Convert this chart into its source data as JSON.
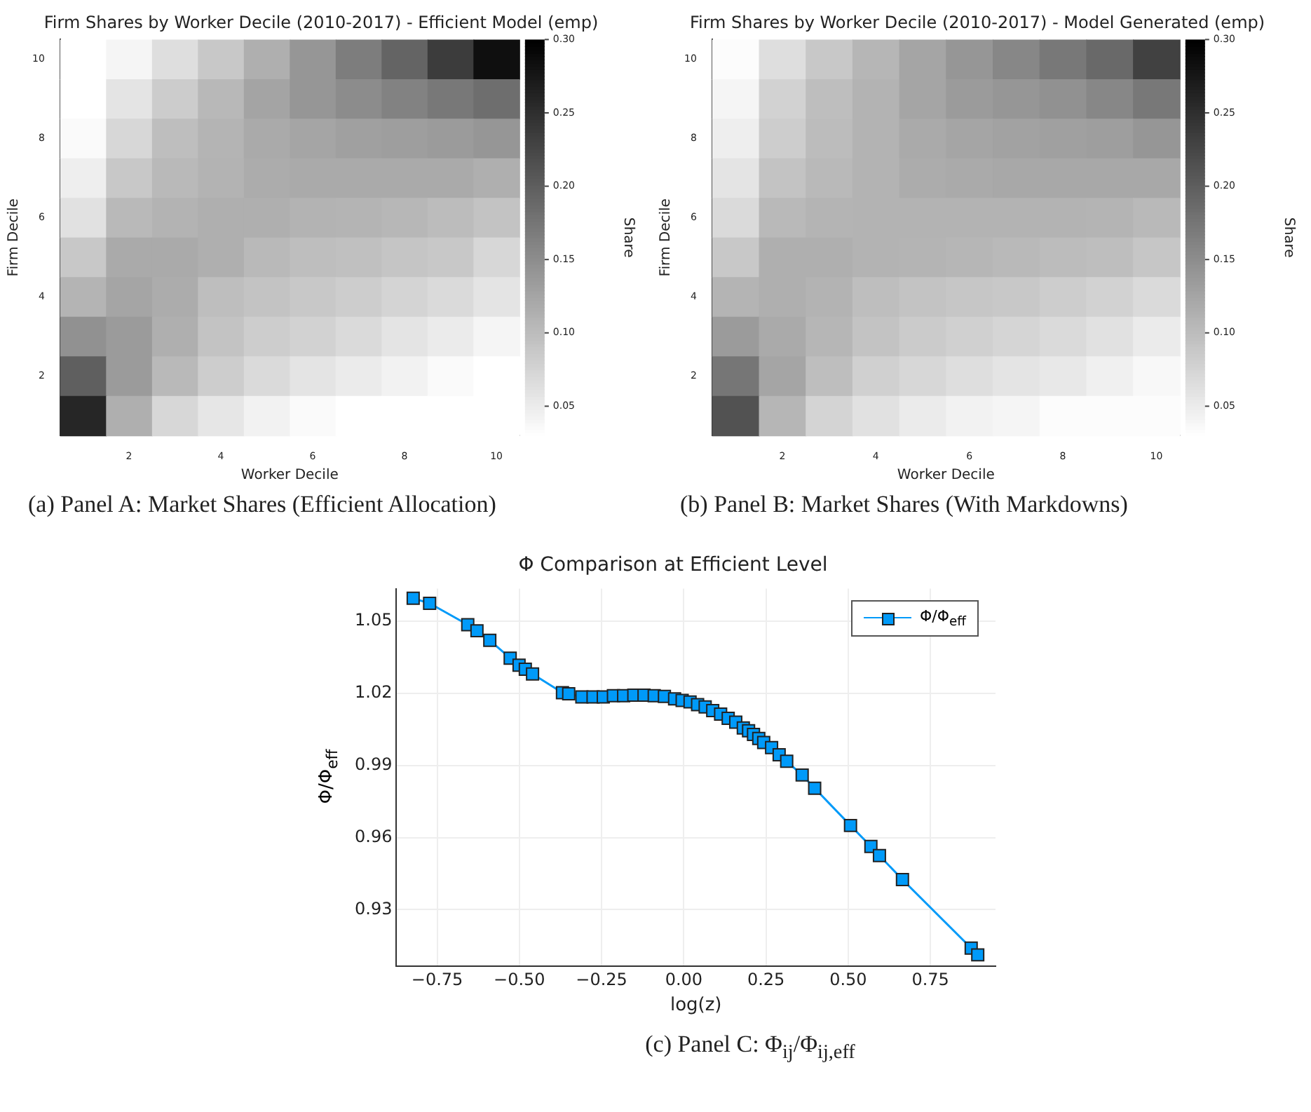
{
  "chart_data": [
    {
      "type": "heatmap",
      "title": "Firm Shares by Worker Decile (2010-2017) - Efficient Model (emp)",
      "xlabel": "Worker Decile",
      "ylabel": "Firm Decile",
      "clabel": "Share",
      "categories": [
        null,
        "2",
        null,
        "4",
        null,
        "6",
        null,
        "8",
        null,
        "10"
      ],
      "y_categories": [
        "10",
        null,
        "8",
        null,
        "6",
        null,
        "4",
        null,
        "2",
        null
      ],
      "cells": [
        [
          0.03,
          0.041,
          0.065,
          0.088,
          0.115,
          0.141,
          0.168,
          0.194,
          0.236,
          0.284
        ],
        [
          0.03,
          0.059,
          0.084,
          0.105,
          0.126,
          0.141,
          0.152,
          0.162,
          0.173,
          0.184
        ],
        [
          0.035,
          0.072,
          0.099,
          0.109,
          0.12,
          0.125,
          0.131,
          0.133,
          0.136,
          0.141
        ],
        [
          0.048,
          0.088,
          0.104,
          0.111,
          0.118,
          0.12,
          0.12,
          0.12,
          0.12,
          0.115
        ],
        [
          0.062,
          0.104,
          0.111,
          0.115,
          0.115,
          0.111,
          0.109,
          0.106,
          0.101,
          0.094
        ],
        [
          0.088,
          0.12,
          0.12,
          0.115,
          0.104,
          0.099,
          0.097,
          0.091,
          0.088,
          0.072
        ],
        [
          0.109,
          0.125,
          0.118,
          0.099,
          0.094,
          0.088,
          0.083,
          0.076,
          0.069,
          0.059
        ],
        [
          0.146,
          0.136,
          0.115,
          0.094,
          0.083,
          0.078,
          0.069,
          0.059,
          0.051,
          0.041
        ],
        [
          0.199,
          0.136,
          0.104,
          0.083,
          0.069,
          0.059,
          0.051,
          0.044,
          0.035,
          0.03
        ],
        [
          0.26,
          0.115,
          0.072,
          0.056,
          0.044,
          0.035,
          0.03,
          0.03,
          0.03,
          0.03
        ]
      ],
      "clim": [
        0.03,
        0.3
      ],
      "cticks": [
        0.05,
        {
          "value": 0.1,
          "label": "0.10"
        },
        0.15,
        {
          "value": 0.2,
          "label": "0.20"
        },
        0.25,
        {
          "value": 0.3,
          "label": "0.30"
        }
      ],
      "annotations": [
        "(a) Panel A: Market Shares (Efficient Allocation)"
      ]
    },
    {
      "type": "heatmap",
      "title": "Firm Shares by Worker Decile (2010-2017) - Model Generated (emp)",
      "xlabel": "Worker Decile",
      "ylabel": "Firm Decile",
      "clabel": "Share",
      "categories": [
        null,
        "2",
        null,
        "4",
        null,
        "6",
        null,
        "8",
        null,
        "10"
      ],
      "y_categories": [
        "10",
        null,
        "8",
        null,
        "6",
        null,
        "4",
        null,
        "2",
        null
      ],
      "cells": [
        [
          0.033,
          0.065,
          0.088,
          0.107,
          0.125,
          0.141,
          0.157,
          0.173,
          0.189,
          0.231
        ],
        [
          0.041,
          0.078,
          0.099,
          0.111,
          0.125,
          0.136,
          0.141,
          0.146,
          0.157,
          0.173
        ],
        [
          0.048,
          0.083,
          0.101,
          0.111,
          0.12,
          0.125,
          0.128,
          0.131,
          0.133,
          0.141
        ],
        [
          0.059,
          0.094,
          0.104,
          0.111,
          0.118,
          0.12,
          0.122,
          0.122,
          0.122,
          0.122
        ],
        [
          0.069,
          0.104,
          0.109,
          0.111,
          0.111,
          0.111,
          0.111,
          0.111,
          0.109,
          0.104
        ],
        [
          0.088,
          0.115,
          0.115,
          0.111,
          0.109,
          0.107,
          0.104,
          0.101,
          0.099,
          0.09
        ],
        [
          0.109,
          0.115,
          0.111,
          0.099,
          0.094,
          0.09,
          0.088,
          0.083,
          0.078,
          0.069
        ],
        [
          0.136,
          0.12,
          0.107,
          0.094,
          0.085,
          0.08,
          0.074,
          0.069,
          0.062,
          0.051
        ],
        [
          0.175,
          0.125,
          0.099,
          0.08,
          0.072,
          0.065,
          0.059,
          0.054,
          0.046,
          0.037
        ],
        [
          0.213,
          0.107,
          0.076,
          0.062,
          0.051,
          0.044,
          0.041,
          0.033,
          0.033,
          0.033
        ]
      ],
      "clim": [
        0.03,
        0.3
      ],
      "cticks": [
        0.05,
        {
          "value": 0.1,
          "label": "0.10"
        },
        0.15,
        {
          "value": 0.2,
          "label": "0.20"
        },
        0.25,
        {
          "value": 0.3,
          "label": "0.30"
        }
      ],
      "annotations": [
        "(b) Panel B: Market Shares (With Markdowns)"
      ]
    },
    {
      "type": "line",
      "title": "Φ Comparison at Efficient Level",
      "xlabel": "log(z)",
      "ylabel": "Φ/Φ$_{eff}$",
      "x": [
        -0.823,
        -0.773,
        -0.657,
        -0.629,
        -0.59,
        -0.528,
        -0.501,
        -0.482,
        -0.46,
        -0.369,
        -0.35,
        -0.31,
        -0.276,
        -0.245,
        -0.214,
        -0.183,
        -0.152,
        -0.121,
        -0.09,
        -0.059,
        -0.028,
        -0.005,
        0.019,
        0.042,
        0.065,
        0.088,
        0.112,
        0.135,
        0.158,
        0.181,
        0.197,
        0.212,
        0.228,
        0.243,
        0.267,
        0.29,
        0.313,
        0.36,
        0.398,
        0.507,
        0.569,
        0.595,
        0.665,
        0.874,
        0.894
      ],
      "series": [
        {
          "name": "Φ/Φ$_{eff}$",
          "color": "#009af9",
          "values": [
            1.0595,
            1.0574,
            1.0485,
            1.046,
            1.042,
            1.0346,
            1.0317,
            1.03,
            1.028,
            1.0202,
            1.0198,
            1.0185,
            1.0185,
            1.0185,
            1.019,
            1.019,
            1.0192,
            1.0192,
            1.019,
            1.0187,
            1.0177,
            1.017,
            1.0164,
            1.0153,
            1.0143,
            1.0128,
            1.0113,
            1.0096,
            1.008,
            1.0056,
            1.0044,
            1.0029,
            1.0012,
            0.9995,
            0.9974,
            0.9944,
            0.9917,
            0.986,
            0.9805,
            0.965,
            0.9563,
            0.9525,
            0.9425,
            0.914,
            0.9112
          ]
        }
      ],
      "xlim": [
        -0.874,
        0.948
      ],
      "ylim": [
        0.9065,
        1.0635
      ],
      "xticks": [
        {
          "value": -0.75,
          "label": "−0.75"
        },
        {
          "value": -0.5,
          "label": "−0.50"
        },
        {
          "value": -0.25,
          "label": "−0.25"
        },
        {
          "value": 0,
          "label": "0.00"
        },
        0.25,
        {
          "value": 0.5,
          "label": "0.50"
        },
        0.75
      ],
      "yticks": [
        0.93,
        0.96,
        0.99,
        1.02,
        1.05
      ],
      "grid": true,
      "legend": "top right",
      "marker": "square",
      "annotations": [
        "(c) Panel C: Φ$_{ij}$/Φ$_{ij,eff}$"
      ]
    }
  ]
}
